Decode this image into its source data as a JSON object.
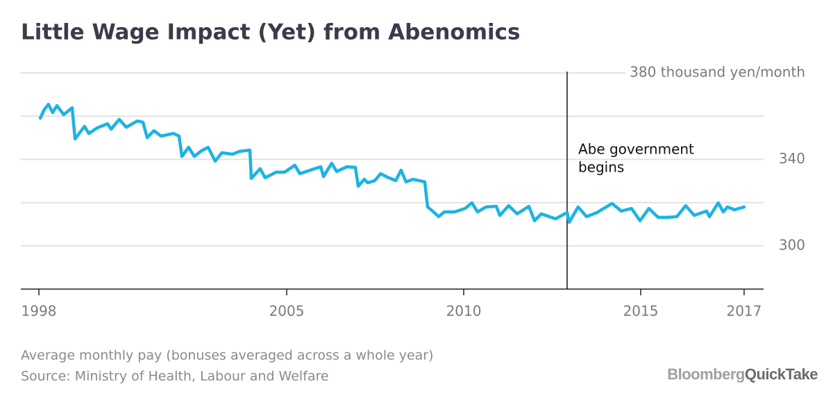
{
  "chart_data": {
    "type": "line",
    "title": "Little Wage Impact (Yet) from Abenomics",
    "note": "Average monthly pay (bonuses averaged across a whole year)",
    "source": "Source: Ministry of Health, Labour and Welfare",
    "brand": [
      "Bloomberg",
      "QuickTake"
    ],
    "annotation": {
      "text": [
        "Abe government",
        "begins"
      ],
      "x": 2012.92
    },
    "xlim": [
      1997.49,
      2018.47
    ],
    "xticks": [
      1998,
      2005,
      2010,
      2015,
      {
        "value": 2017.92,
        "label": "2017"
      }
    ],
    "ylim": [
      280,
      380
    ],
    "yticks": [
      300,
      340,
      {
        "value": 380,
        "label": "380 thousand yen/month"
      }
    ],
    "minor_yticks": [
      320,
      360
    ],
    "grid": true,
    "x": [
      1998.04,
      1998.15,
      1998.27,
      1998.39,
      1998.51,
      1998.7,
      1998.94,
      1999.02,
      1999.29,
      1999.41,
      1999.65,
      1999.94,
      2000.04,
      2000.27,
      2000.47,
      2000.78,
      2000.94,
      2001.06,
      2001.25,
      2001.45,
      2001.8,
      2001.96,
      2002.04,
      2002.23,
      2002.39,
      2002.59,
      2002.78,
      2002.98,
      2003.17,
      2003.47,
      2003.66,
      2003.96,
      2004.0,
      2004.25,
      2004.39,
      2004.7,
      2004.94,
      2005.23,
      2005.37,
      2005.72,
      2005.96,
      2006.04,
      2006.27,
      2006.41,
      2006.7,
      2006.94,
      2007.02,
      2007.19,
      2007.29,
      2007.49,
      2007.65,
      2007.84,
      2008.08,
      2008.23,
      2008.37,
      2008.57,
      2008.9,
      2008.98,
      2009.15,
      2009.29,
      2009.45,
      2009.74,
      2010.04,
      2010.23,
      2010.39,
      2010.63,
      2010.92,
      2011.02,
      2011.27,
      2011.51,
      2011.84,
      2012.0,
      2012.19,
      2012.59,
      2012.92,
      2012.98,
      2013.23,
      2013.47,
      2013.76,
      2014.19,
      2014.45,
      2014.74,
      2014.98,
      2015.23,
      2015.49,
      2015.76,
      2016.02,
      2016.27,
      2016.51,
      2016.86,
      2016.94,
      2017.19,
      2017.33,
      2017.45,
      2017.65,
      2017.92
    ],
    "series": [
      {
        "color": "#1cb3e3",
        "values": [
          359.1,
          363.0,
          365.5,
          361.7,
          364.9,
          360.7,
          363.9,
          349.5,
          355.3,
          352.0,
          354.6,
          356.5,
          354.0,
          358.5,
          354.9,
          357.8,
          357.2,
          350.1,
          353.3,
          350.8,
          352.0,
          350.8,
          341.4,
          345.6,
          341.4,
          344.0,
          345.6,
          339.2,
          343.1,
          342.4,
          343.7,
          344.3,
          331.2,
          335.7,
          331.5,
          334.1,
          334.1,
          337.3,
          333.4,
          335.3,
          336.6,
          332.1,
          338.2,
          334.4,
          336.6,
          336.3,
          327.6,
          330.8,
          329.2,
          330.2,
          333.4,
          331.8,
          330.2,
          335.0,
          329.6,
          330.8,
          329.6,
          318.0,
          315.7,
          313.5,
          315.7,
          315.7,
          317.3,
          319.9,
          315.7,
          318.0,
          318.3,
          314.1,
          318.6,
          314.8,
          318.3,
          311.6,
          314.8,
          312.5,
          315.4,
          310.9,
          318.0,
          313.5,
          315.4,
          319.6,
          316.1,
          317.3,
          311.6,
          317.3,
          313.2,
          313.2,
          313.5,
          318.6,
          314.1,
          316.1,
          313.5,
          319.9,
          315.7,
          318.0,
          316.7,
          318.0
        ]
      }
    ]
  }
}
